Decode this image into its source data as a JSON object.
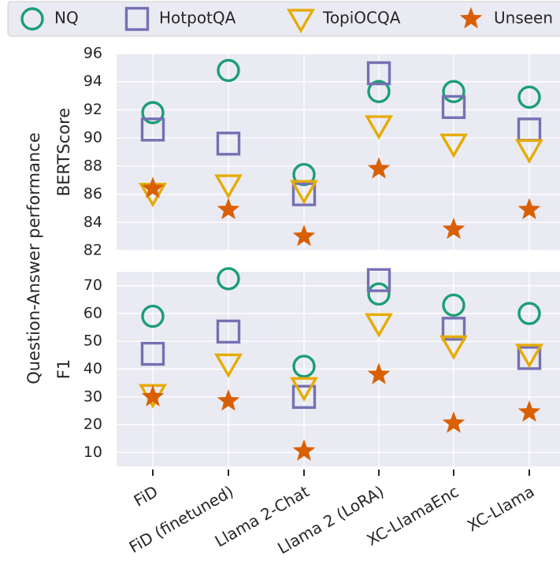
{
  "chart_data": {
    "type": "scatter",
    "figure_ylabel": "Question-Answer performance",
    "categories": [
      "FiD",
      "FiD (finetuned)",
      "Llama 2-Chat",
      "Llama 2 (LoRA)",
      "XC-LlamaEnc",
      "XC-Llama"
    ],
    "legend": {
      "placement": "top",
      "entries": [
        {
          "name": "NQ",
          "marker": "circle",
          "color": "#1b9e77"
        },
        {
          "name": "HotpotQA",
          "marker": "square",
          "color": "#7570b3"
        },
        {
          "name": "TopiOCQA",
          "marker": "triangle-down",
          "color": "#e6ab02"
        },
        {
          "name": "Unseen",
          "marker": "star",
          "color": "#d95f02"
        }
      ]
    },
    "panels": [
      {
        "ylabel": "BERTScore",
        "ylim": [
          82,
          96
        ],
        "yticks": [
          82,
          84,
          86,
          88,
          90,
          92,
          94,
          96
        ],
        "grid": true,
        "series": [
          {
            "name": "NQ",
            "values": [
              91.8,
              94.8,
              87.4,
              93.3,
              93.3,
              92.9
            ]
          },
          {
            "name": "HotpotQA",
            "values": [
              90.6,
              89.6,
              86.0,
              94.6,
              92.2,
              90.6
            ]
          },
          {
            "name": "TopiOCQA",
            "values": [
              86.1,
              86.7,
              86.3,
              90.9,
              89.6,
              89.2
            ]
          },
          {
            "name": "Unseen",
            "values": [
              86.4,
              84.9,
              83.0,
              87.8,
              83.5,
              84.9
            ]
          }
        ]
      },
      {
        "ylabel": "F1",
        "ylim": [
          5,
          75
        ],
        "yticks": [
          10,
          20,
          30,
          40,
          50,
          60,
          70
        ],
        "grid": true,
        "series": [
          {
            "name": "NQ",
            "values": [
              59,
              72.5,
              41,
              67,
              63,
              60
            ]
          },
          {
            "name": "HotpotQA",
            "values": [
              45.5,
              53.5,
              30,
              72,
              54.5,
              44
            ]
          },
          {
            "name": "TopiOCQA",
            "values": [
              31,
              42,
              33.5,
              56.5,
              48.5,
              45.5
            ]
          },
          {
            "name": "Unseen",
            "values": [
              30,
              28.5,
              10.5,
              38,
              20.5,
              24.5
            ]
          }
        ]
      }
    ]
  }
}
